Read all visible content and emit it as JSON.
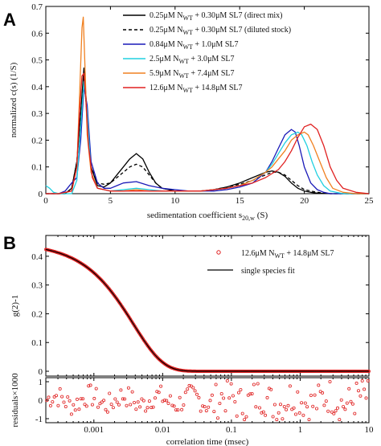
{
  "chart_data": [
    {
      "panel_label": "A",
      "type": "line",
      "xlabel": "sedimentation coefficient s",
      "xlabel_sub": "20,w",
      "xlabel_unit": "(S)",
      "ylabel": "normalized c(s) (1/S)",
      "xlim": [
        0,
        25
      ],
      "ylim": [
        0,
        0.7
      ],
      "xticks": [
        0,
        5,
        10,
        15,
        20,
        25
      ],
      "yticks": [
        0,
        0.1,
        0.2,
        0.3,
        0.4,
        0.5,
        0.6,
        0.7
      ],
      "legend_position": "top-right",
      "series": [
        {
          "name": "0.25μM N_WT + 0.30μM SL7 (direct mix)",
          "leg_a": "0.25",
          "leg_b": " + 0.30",
          "leg_c": " SL7 (direct mix)",
          "color": "#000000",
          "dash": "",
          "x": [
            0,
            0.5,
            1,
            1.5,
            2,
            2.4,
            2.7,
            2.95,
            3.2,
            3.5,
            4,
            4.5,
            5,
            5.5,
            6,
            6.5,
            7,
            7.5,
            8,
            8.5,
            9,
            10,
            11,
            12,
            13,
            14,
            15,
            16,
            16.5,
            17,
            17.5,
            18,
            18.5,
            19,
            19.5,
            20,
            20.5,
            21,
            22,
            23,
            24,
            25
          ],
          "y": [
            0,
            0,
            0,
            0,
            0.02,
            0.12,
            0.3,
            0.47,
            0.3,
            0.1,
            0.03,
            0.025,
            0.04,
            0.07,
            0.1,
            0.13,
            0.15,
            0.13,
            0.08,
            0.04,
            0.02,
            0.01,
            0.01,
            0.01,
            0.015,
            0.025,
            0.04,
            0.06,
            0.07,
            0.08,
            0.085,
            0.08,
            0.065,
            0.04,
            0.02,
            0.01,
            0.005,
            0.002,
            0,
            0,
            0,
            0
          ]
        },
        {
          "name": "0.25μM N_WT + 0.30μM SL7 (diluted stock)",
          "leg_a": "0.25",
          "leg_b": " + 0.30",
          "leg_c": " SL7 (diluted stock)",
          "color": "#000000",
          "dash": "4,3",
          "x": [
            0,
            0.5,
            1,
            1.5,
            2,
            2.4,
            2.7,
            2.95,
            3.2,
            3.5,
            4,
            4.5,
            5,
            5.5,
            6,
            6.5,
            7,
            7.5,
            8,
            8.5,
            9,
            10,
            11,
            12,
            13,
            14,
            15,
            16,
            16.5,
            17,
            17.5,
            18,
            18.5,
            19,
            19.5,
            20,
            21,
            22,
            23,
            24,
            25
          ],
          "y": [
            0,
            0,
            0,
            0,
            0.02,
            0.12,
            0.3,
            0.44,
            0.28,
            0.1,
            0.04,
            0.035,
            0.04,
            0.06,
            0.08,
            0.1,
            0.11,
            0.1,
            0.07,
            0.04,
            0.02,
            0.01,
            0.01,
            0.01,
            0.015,
            0.025,
            0.035,
            0.05,
            0.06,
            0.07,
            0.08,
            0.08,
            0.07,
            0.05,
            0.03,
            0.015,
            0.005,
            0,
            0,
            0,
            0
          ]
        },
        {
          "name": "0.84μM N_WT + 1.0μM SL7",
          "leg_a": "0.84",
          "leg_b": " + 1.0",
          "leg_c": " SL7",
          "color": "#1a1ab8",
          "dash": "",
          "x": [
            0,
            0.5,
            1,
            1.5,
            2,
            2.4,
            2.7,
            2.95,
            3.2,
            3.5,
            4,
            4.5,
            5,
            5.5,
            6,
            7,
            8,
            9,
            10,
            11,
            12,
            13,
            14,
            15,
            16,
            17,
            17.5,
            18,
            18.5,
            19,
            19.3,
            19.6,
            20,
            20.5,
            21,
            21.5,
            22,
            23,
            24,
            25
          ],
          "y": [
            0,
            0,
            0,
            0.01,
            0.04,
            0.06,
            0.2,
            0.4,
            0.33,
            0.12,
            0.04,
            0.02,
            0.02,
            0.03,
            0.04,
            0.045,
            0.03,
            0.02,
            0.015,
            0.01,
            0.01,
            0.01,
            0.015,
            0.025,
            0.04,
            0.08,
            0.12,
            0.17,
            0.22,
            0.24,
            0.23,
            0.18,
            0.1,
            0.04,
            0.015,
            0.005,
            0,
            0,
            0,
            0
          ]
        },
        {
          "name": "2.5μM N_WT + 3.0μM SL7",
          "leg_a": "2.5",
          "leg_b": " + 3.0",
          "leg_c": " SL7",
          "color": "#20d0e0",
          "dash": "",
          "x": [
            0,
            0.3,
            0.6,
            1,
            2,
            2.4,
            2.7,
            2.95,
            3.2,
            3.5,
            4,
            5,
            6,
            7,
            8,
            9,
            10,
            11,
            12,
            13,
            14,
            15,
            16,
            17,
            17.5,
            18,
            18.5,
            19,
            19.5,
            19.8,
            20.2,
            20.6,
            21,
            21.5,
            22,
            23,
            24,
            25
          ],
          "y": [
            0.03,
            0.02,
            0.005,
            0,
            0,
            0.05,
            0.25,
            0.42,
            0.3,
            0.08,
            0.02,
            0.01,
            0.015,
            0.02,
            0.015,
            0.01,
            0.01,
            0.01,
            0.01,
            0.015,
            0.02,
            0.03,
            0.05,
            0.08,
            0.11,
            0.15,
            0.19,
            0.22,
            0.23,
            0.22,
            0.18,
            0.12,
            0.07,
            0.03,
            0.01,
            0,
            0,
            0
          ]
        },
        {
          "name": "5.9μM N_WT + 7.4μM SL7",
          "leg_a": "5.9",
          "leg_b": " + 7.4",
          "leg_c": " SL7",
          "color": "#f08020",
          "dash": "",
          "x": [
            0,
            1,
            2,
            2.4,
            2.6,
            2.8,
            2.9,
            3.05,
            3.2,
            3.5,
            4,
            5,
            6,
            7,
            8,
            9,
            10,
            11,
            12,
            13,
            14,
            15,
            16,
            17,
            17.5,
            18,
            18.5,
            19,
            19.5,
            20,
            20.3,
            20.7,
            21.2,
            21.7,
            22.2,
            23,
            24,
            25
          ],
          "y": [
            0,
            0,
            0.01,
            0.1,
            0.35,
            0.62,
            0.66,
            0.45,
            0.22,
            0.08,
            0.02,
            0.01,
            0.01,
            0.015,
            0.01,
            0.01,
            0.01,
            0.01,
            0.01,
            0.015,
            0.02,
            0.03,
            0.05,
            0.08,
            0.1,
            0.13,
            0.16,
            0.2,
            0.22,
            0.23,
            0.22,
            0.18,
            0.12,
            0.06,
            0.02,
            0.005,
            0,
            0
          ]
        },
        {
          "name": "12.6μM N_WT + 14.8μM SL7",
          "leg_a": "12.6",
          "leg_b": " + 14.8",
          "leg_c": " SL7",
          "color": "#e02020",
          "dash": "",
          "x": [
            0,
            1,
            2,
            2.4,
            2.6,
            2.8,
            2.95,
            3.1,
            3.3,
            3.6,
            4,
            5,
            6,
            7,
            8,
            9,
            10,
            11,
            12,
            13,
            14,
            15,
            16,
            17,
            18,
            18.5,
            19,
            19.5,
            20,
            20.5,
            21,
            21.5,
            22,
            22.5,
            23,
            24,
            25
          ],
          "y": [
            0,
            0,
            0.01,
            0.1,
            0.3,
            0.44,
            0.45,
            0.35,
            0.18,
            0.06,
            0.02,
            0.01,
            0.01,
            0.01,
            0.01,
            0.01,
            0.01,
            0.01,
            0.01,
            0.015,
            0.02,
            0.03,
            0.04,
            0.06,
            0.09,
            0.12,
            0.16,
            0.21,
            0.25,
            0.26,
            0.24,
            0.18,
            0.1,
            0.05,
            0.02,
            0.005,
            0
          ]
        }
      ]
    },
    {
      "panel_label": "B",
      "type": "scatter",
      "xlabel": "correlation time (msec)",
      "ylabel": "g(2)-1",
      "ylabel_resid": "residuals×1000",
      "xscale": "log",
      "xlim": [
        0.0002,
        10
      ],
      "ylim": [
        0,
        0.45
      ],
      "resid_ylim": [
        -1,
        1
      ],
      "xticks": [
        0.001,
        0.01,
        0.1,
        1,
        10
      ],
      "xtick_labels": [
        "0.001",
        "0.01",
        "0.1",
        "1",
        "10"
      ],
      "yticks": [
        0,
        0.1,
        0.2,
        0.3,
        0.4
      ],
      "resid_yticks": [
        -1,
        0,
        1
      ],
      "legend_position": "top-right",
      "data_series": {
        "name": "12.6μM N_WT + 14.8μM SL7",
        "leg_a": "12.6",
        "leg_b": " + 14.8",
        "leg_c": " SL7",
        "color": "#e02020",
        "g0": 0.447,
        "tau": 0.0075
      },
      "fit_series": {
        "name": "single species fit",
        "color": "#000000"
      }
    }
  ]
}
